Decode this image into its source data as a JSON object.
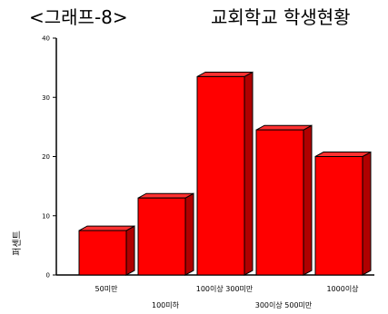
{
  "chart_data": {
    "type": "bar",
    "title_left": "<그래프-8>",
    "title_right": "교회학교 학생현황",
    "ylabel": "퍼센트",
    "xlabel": "",
    "categories": [
      "50미만",
      "100미하",
      "100이상 300미만",
      "300이상 500미만",
      "1000이상"
    ],
    "values": [
      7.5,
      13,
      33.5,
      24.5,
      20
    ],
    "ylim": [
      0,
      40
    ],
    "yticks": [
      "0",
      "10",
      "20",
      "30",
      "40"
    ],
    "bar_color": "#ff0000",
    "bar_side_color": "#b00000",
    "bar_top_color": "#ff3030",
    "grid": false,
    "style": "3d-bar"
  }
}
